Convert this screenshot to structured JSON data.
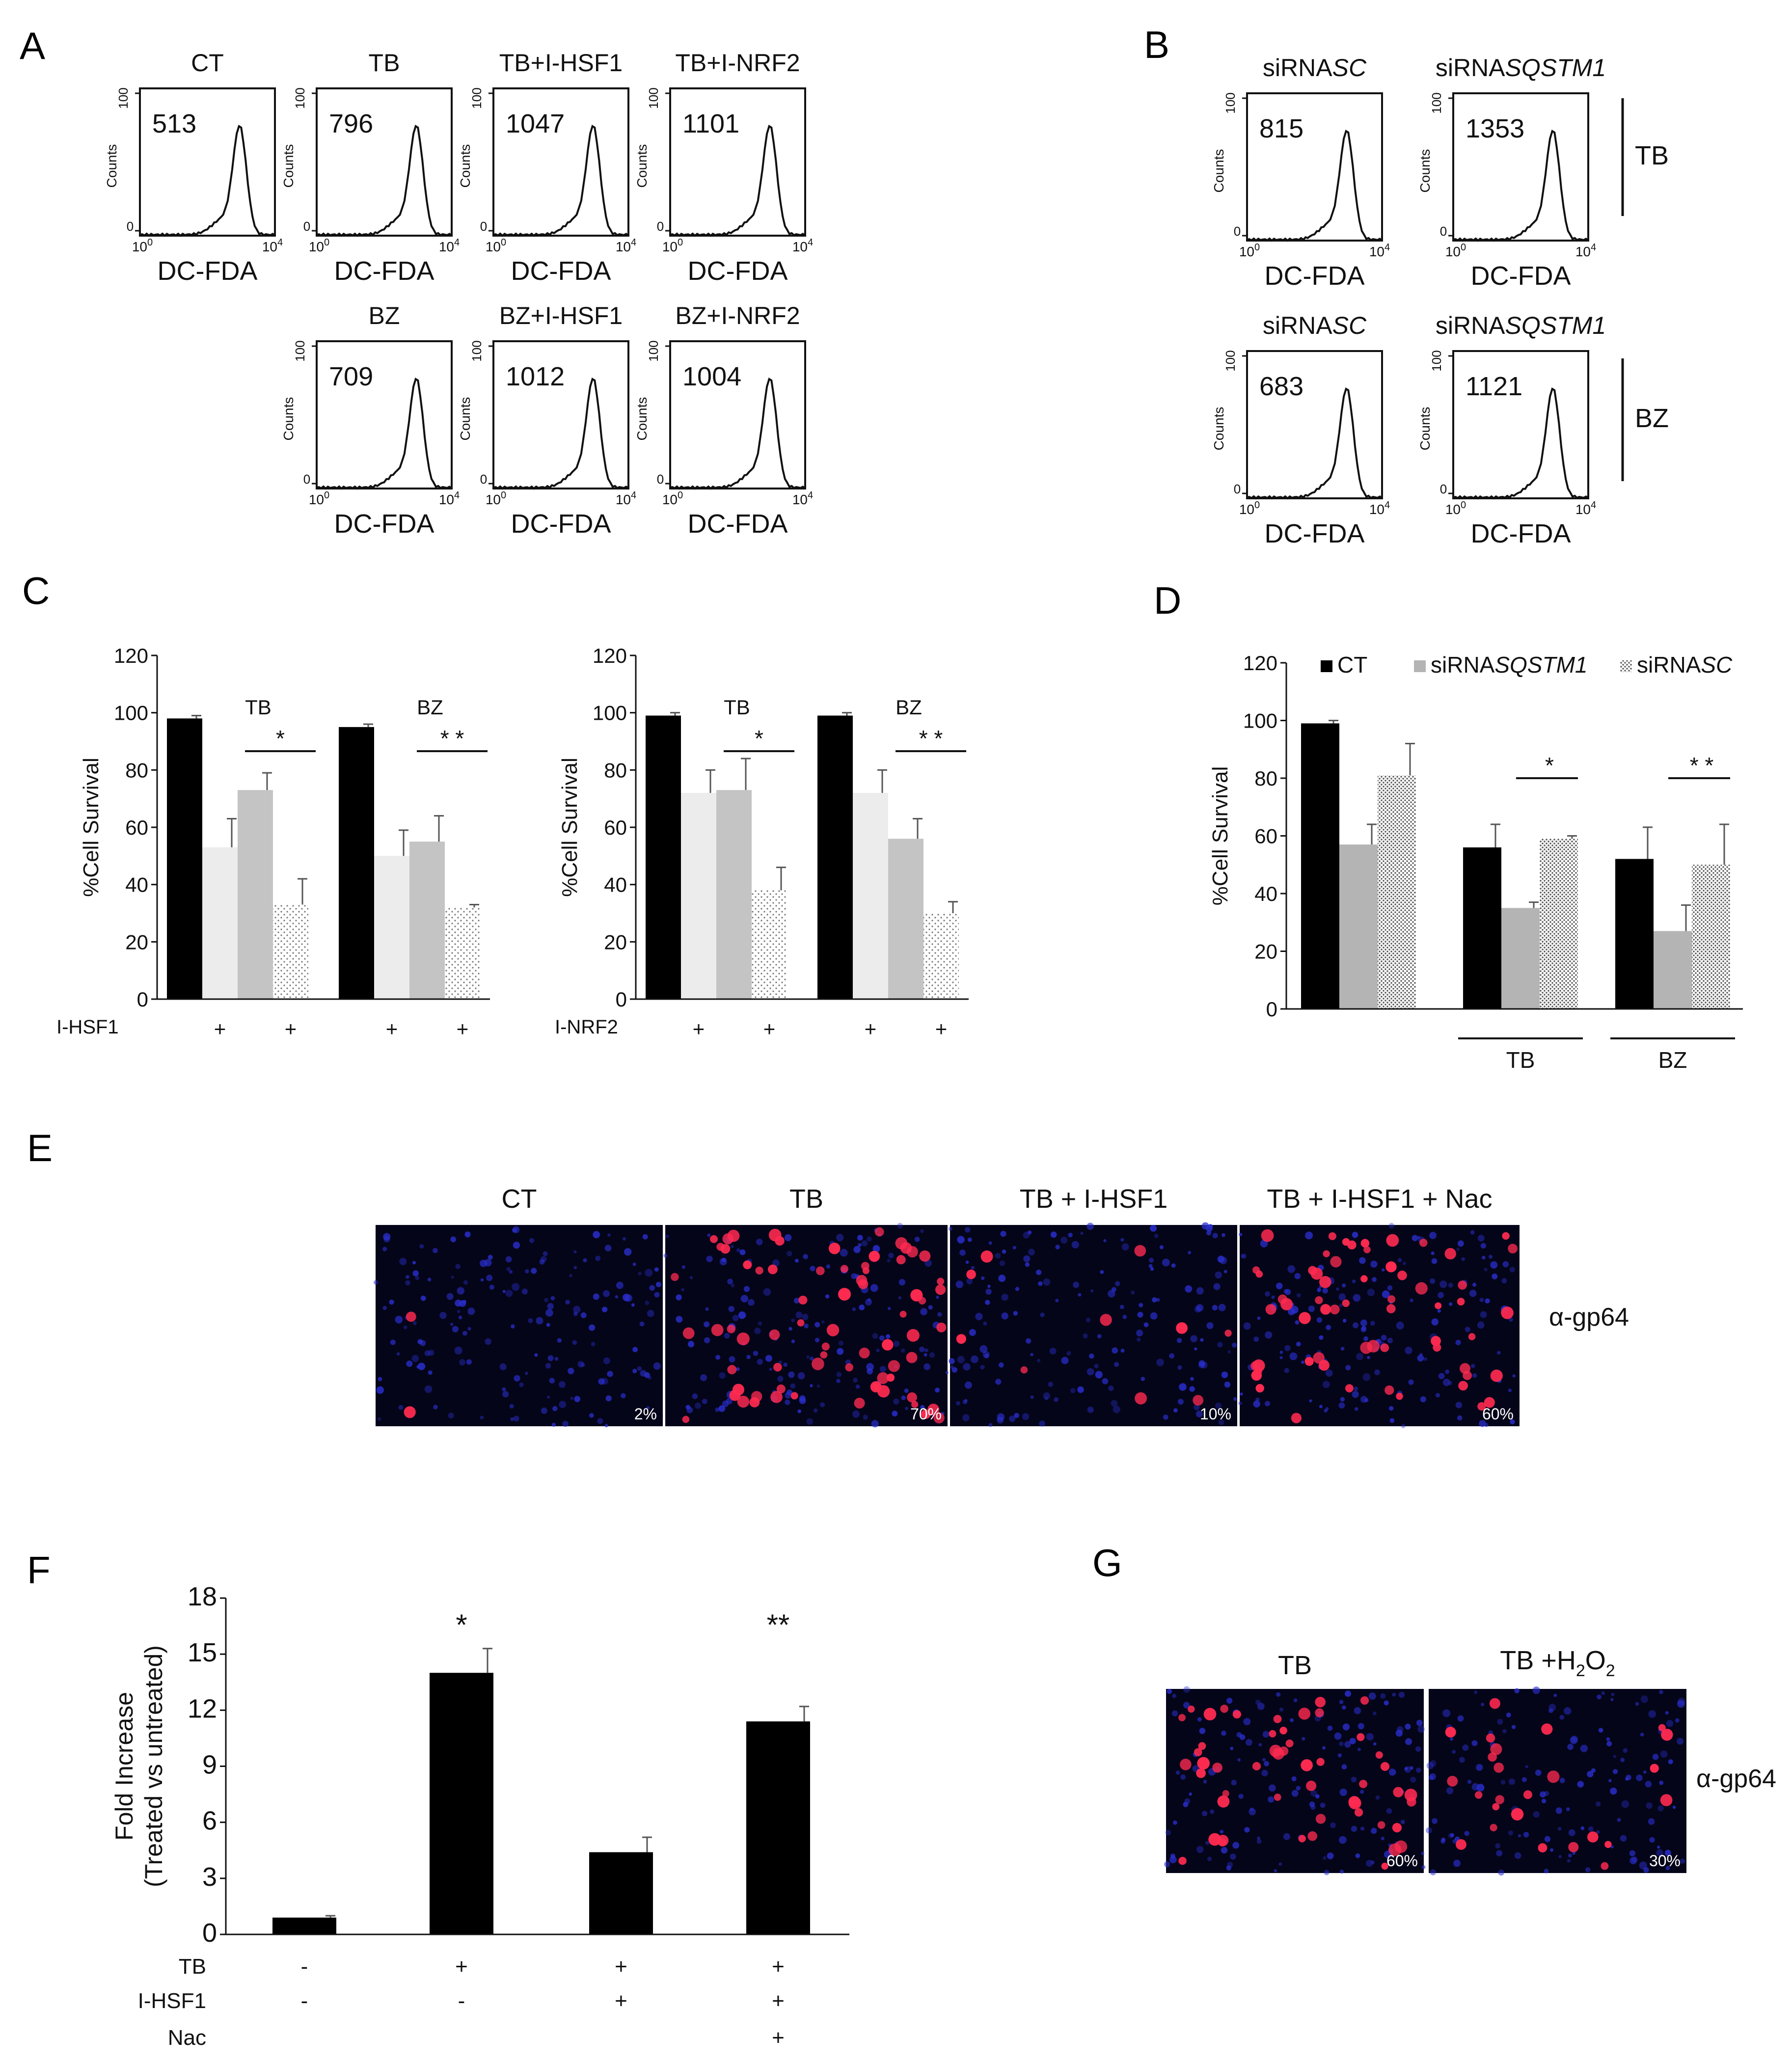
{
  "panels": {
    "A": "A",
    "B": "B",
    "C": "C",
    "D": "D",
    "E": "E",
    "F": "F",
    "G": "G"
  },
  "flow_common": {
    "x_label": "DC-FDA",
    "y_label": "Counts",
    "y_top": "100",
    "y_bottom": "0",
    "x_left": "10",
    "x_left_exp": "0",
    "x_right": "10",
    "x_right_exp": "4"
  },
  "flow_A": [
    {
      "title": "CT",
      "value": "513"
    },
    {
      "title": "TB",
      "value": "796"
    },
    {
      "title": "TB+I-HSF1",
      "value": "1047"
    },
    {
      "title": "TB+I-NRF2",
      "value": "1101"
    },
    {
      "title": "BZ",
      "value": "709"
    },
    {
      "title": "BZ+I-HSF1",
      "value": "1012"
    },
    {
      "title": "BZ+I-NRF2",
      "value": "1004"
    }
  ],
  "flow_B": [
    {
      "title": "siRNA",
      "title_it": "SC",
      "value": "815"
    },
    {
      "title": "siRNA",
      "title_it": "SQSTM1",
      "value": "1353"
    },
    {
      "title": "siRNA",
      "title_it": "SC",
      "value": "683"
    },
    {
      "title": "siRNA",
      "title_it": "SQSTM1",
      "value": "1121"
    }
  ],
  "flow_B_groups": [
    "TB",
    "BZ"
  ],
  "chart_data": [
    {
      "id": "C1",
      "type": "bar",
      "ylabel": "%Cell Survival",
      "ylim": [
        0,
        120
      ],
      "yticks": [
        "0",
        "20",
        "40",
        "60",
        "80",
        "100",
        "120"
      ],
      "groups": [
        "TB",
        "BZ"
      ],
      "row_label": "I-HSF1",
      "row_marks": [
        "",
        "+",
        "",
        "+",
        "",
        "+",
        "",
        "+"
      ],
      "values": [
        98,
        53,
        73,
        33,
        95,
        50,
        55,
        32
      ],
      "errors": [
        1,
        10,
        6,
        9,
        1,
        9,
        9,
        1
      ],
      "sig": [
        "*",
        "* *"
      ]
    },
    {
      "id": "C2",
      "type": "bar",
      "ylabel": "%Cell Survival",
      "ylim": [
        0,
        120
      ],
      "yticks": [
        "0",
        "20",
        "40",
        "60",
        "80",
        "100",
        "120"
      ],
      "groups": [
        "TB",
        "BZ"
      ],
      "row_label": "I-NRF2",
      "row_marks": [
        "",
        "+",
        "",
        "+",
        "",
        "+",
        "",
        "+"
      ],
      "values": [
        99,
        72,
        73,
        38,
        99,
        72,
        56,
        30
      ],
      "errors": [
        1,
        8,
        11,
        8,
        1,
        8,
        7,
        4
      ],
      "sig": [
        "*",
        "* *"
      ]
    },
    {
      "id": "D",
      "type": "bar",
      "ylabel": "%Cell Survival",
      "ylim": [
        0,
        120
      ],
      "yticks": [
        "0",
        "20",
        "40",
        "60",
        "80",
        "100",
        "120"
      ],
      "legend": [
        {
          "name": "CT"
        },
        {
          "name": "siRNA",
          "name_it": "SQSTM1"
        },
        {
          "name": "siRNA",
          "name_it": "SC"
        }
      ],
      "groups": [
        "TB",
        "BZ"
      ],
      "values": [
        99,
        57,
        81,
        56,
        35,
        59,
        52,
        27,
        50
      ],
      "errors": [
        1,
        7,
        11,
        8,
        2,
        1,
        11,
        9,
        14
      ],
      "sig": [
        "*",
        "* *"
      ]
    },
    {
      "id": "F",
      "type": "bar",
      "ylabel": "Fold Increase",
      "ylabel2": "(Treated vs untreated)",
      "ylim": [
        0,
        18
      ],
      "yticks": [
        "0",
        "3",
        "6",
        "9",
        "12",
        "15",
        "18"
      ],
      "values": [
        0.9,
        14,
        4.4,
        11.4
      ],
      "errors": [
        0.1,
        1.3,
        0.8,
        0.8
      ],
      "sig": [
        "",
        "*",
        "",
        "**"
      ],
      "rows": [
        {
          "label": "TB",
          "marks": [
            "-",
            "+",
            "+",
            "+"
          ]
        },
        {
          "label": "I-HSF1",
          "marks": [
            "-",
            "-",
            "+",
            "+"
          ]
        },
        {
          "label": "Nac",
          "marks": [
            "",
            "",
            "",
            "+"
          ]
        }
      ]
    }
  ],
  "panel_E": {
    "titles": [
      "CT",
      "TB",
      "TB + I-HSF1",
      "TB + I-HSF1 + Nac"
    ],
    "percents": [
      "2%",
      "70%",
      "10%",
      "60%"
    ],
    "density": [
      0.02,
      0.7,
      0.1,
      0.6
    ],
    "side_label": "α-gp64"
  },
  "panel_G": {
    "titles": [
      "TB",
      "TB +H",
      "2",
      "O",
      "2"
    ],
    "percents": [
      "60%",
      "30%"
    ],
    "density": [
      0.6,
      0.3
    ],
    "side_label": "α-gp64"
  }
}
